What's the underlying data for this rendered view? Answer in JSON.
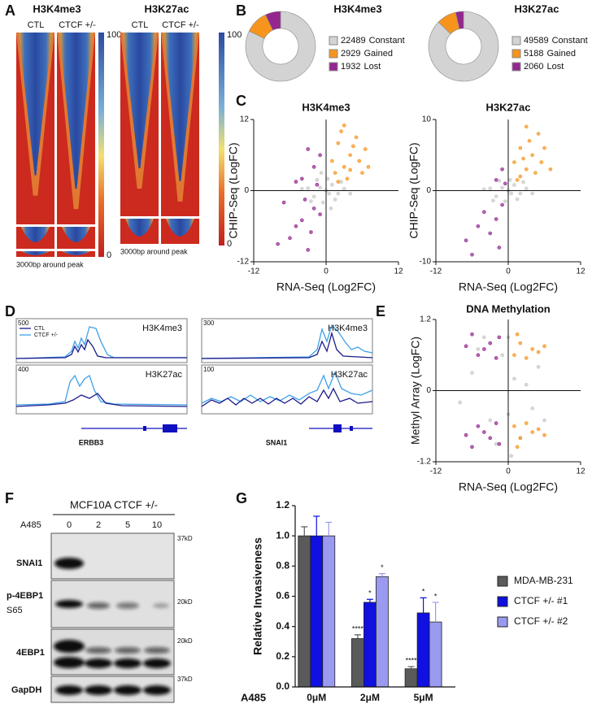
{
  "panel_labels": [
    "A",
    "B",
    "C",
    "D",
    "E",
    "F",
    "G"
  ],
  "heatmaps": [
    {
      "title": "H3K4me3",
      "columns": [
        "CTL",
        "CTCF +/-"
      ],
      "scale": [
        100,
        0
      ],
      "footer": "3000bp around peak"
    },
    {
      "title": "H3K27ac",
      "columns": [
        "CTL",
        "CTCF +/-"
      ],
      "scale": [
        100,
        0
      ],
      "footer": "3000bp around peak"
    }
  ],
  "chart_data": [
    {
      "type": "pie",
      "title": "H3K4me3",
      "categories": [
        "Constant",
        "Gained",
        "Lost"
      ],
      "values": [
        22489,
        2929,
        1932
      ],
      "colors": [
        "#d3d3d3",
        "#f7941d",
        "#93278f"
      ]
    },
    {
      "type": "pie",
      "title": "H3K27ac",
      "categories": [
        "Constant",
        "Gained",
        "Lost"
      ],
      "values": [
        49589,
        5188,
        2060
      ],
      "colors": [
        "#d3d3d3",
        "#f7941d",
        "#93278f"
      ]
    },
    {
      "type": "scatter",
      "title": "H3K4me3",
      "xlabel": "RNA-Seq (Log2FC)",
      "ylabel": "CHIP-Seq (LogFC)",
      "xlim": [
        -12,
        12
      ],
      "ylim": [
        -12,
        12
      ],
      "xticks": [
        -12,
        0,
        12
      ],
      "yticks": [
        -12,
        0,
        12
      ],
      "series": [
        {
          "color": "#c8c8c8",
          "x": [
            -1,
            0.5,
            1,
            -2,
            2,
            -0.5,
            0.3,
            3,
            -3,
            1.5,
            -1.5,
            0,
            2.5,
            -2.5,
            4,
            -4,
            0.8,
            -0.8
          ],
          "y": [
            0.5,
            -0.5,
            1,
            -1,
            -0.5,
            -2,
            2,
            0.3,
            0.4,
            -1.5,
            1.8,
            0,
            1.5,
            -1.8,
            -0.5,
            0.3,
            -3,
            3
          ]
        },
        {
          "color": "#f7941d",
          "x": [
            1,
            2,
            3,
            4,
            5,
            6,
            2.5,
            3.5,
            4.5,
            1.5,
            5.5,
            7,
            3,
            6.5,
            2,
            4
          ],
          "y": [
            5,
            8,
            4,
            6,
            9,
            3,
            10,
            2,
            7.5,
            3,
            5,
            4,
            11,
            7,
            1.5,
            3.5
          ]
        },
        {
          "color": "#93278f",
          "x": [
            -2,
            -4,
            -1,
            -3,
            -5,
            -2,
            -4,
            -6,
            -3,
            -1,
            -7,
            -5,
            -2.5,
            -8,
            -3.5,
            -1.5
          ],
          "y": [
            4,
            2,
            6,
            7,
            1.5,
            -3,
            -5,
            -8,
            -10,
            -4,
            -2,
            -6,
            -7,
            -9,
            -1.5,
            1
          ]
        }
      ]
    },
    {
      "type": "scatter",
      "title": "H3K27ac",
      "xlabel": "RNA-Seq (Log2FC)",
      "ylabel": "CHIP-Seq (LogFC)",
      "xlim": [
        -12,
        12
      ],
      "ylim": [
        -10,
        10
      ],
      "xticks": [
        -12,
        0,
        12
      ],
      "yticks": [
        -10,
        0,
        10
      ],
      "series": [
        {
          "color": "#c8c8c8",
          "x": [
            -1,
            0.5,
            1,
            -2,
            2,
            -0.5,
            0.3,
            3,
            -3,
            1.5,
            -1.5,
            0,
            2.5,
            -2.5,
            4,
            -4
          ],
          "y": [
            0.4,
            -0.4,
            0.8,
            -0.8,
            -0.4,
            -1.5,
            1.5,
            0.3,
            0.3,
            -1.2,
            1.4,
            0,
            1.2,
            -1.4,
            -0.4,
            0.2
          ]
        },
        {
          "color": "#f7941d",
          "x": [
            1,
            2,
            3,
            4,
            5,
            2,
            3,
            4.5,
            1.5,
            5.5,
            6,
            3.5,
            2.5,
            7
          ],
          "y": [
            4,
            6,
            3,
            5,
            8,
            2,
            9,
            2.5,
            1.5,
            4,
            6,
            7,
            4.5,
            3
          ]
        },
        {
          "color": "#93278f",
          "x": [
            -1,
            -2,
            -1,
            -3,
            -5,
            -6,
            -2,
            -4,
            -1.5,
            -7,
            -0.5
          ],
          "y": [
            3,
            1.5,
            -2,
            -6,
            -5,
            -9,
            -4,
            -3,
            -8,
            -7,
            1
          ]
        }
      ]
    },
    {
      "type": "scatter",
      "title": "DNA Methylation",
      "xlabel": "RNA-Seq (Log2FC)",
      "ylabel": "Methyl Array (LogFC)",
      "xlim": [
        -12,
        12
      ],
      "ylim": [
        -1.2,
        1.2
      ],
      "xticks": [
        -12,
        0,
        12
      ],
      "yticks": [
        -1.2,
        0,
        1.2
      ],
      "series": [
        {
          "color": "#c8c8c8",
          "x": [
            -6,
            -3,
            0,
            2,
            5,
            -8,
            0.5,
            -1,
            3,
            -4,
            6,
            1,
            -2,
            4,
            -5,
            0
          ],
          "y": [
            0.3,
            -0.5,
            0.9,
            -0.8,
            0.4,
            -0.2,
            -1.1,
            0.6,
            0.1,
            0.9,
            -0.5,
            0.2,
            -0.9,
            -0.3,
            0.7,
            -0.4
          ]
        },
        {
          "color": "#93278f",
          "x": [
            -7,
            -5,
            -3,
            -2,
            -6,
            -4,
            -1.5,
            -7,
            -5,
            -3,
            -2,
            -6,
            -4,
            -1.5
          ],
          "y": [
            0.75,
            0.6,
            0.8,
            0.55,
            0.95,
            0.7,
            0.9,
            -0.75,
            -0.6,
            -0.8,
            -0.55,
            -0.95,
            -0.7,
            -0.9
          ]
        },
        {
          "color": "#f7941d",
          "x": [
            1,
            2,
            3,
            4,
            5,
            6,
            1.5,
            1,
            2,
            3,
            4,
            5,
            6,
            1.5
          ],
          "y": [
            0.6,
            0.8,
            0.55,
            0.7,
            0.65,
            0.75,
            0.95,
            -0.6,
            -0.8,
            -0.55,
            -0.7,
            -0.65,
            -0.75,
            -0.95
          ]
        }
      ]
    },
    {
      "type": "bar",
      "ylabel": "Relative Invasiveness",
      "xlabel": "A485",
      "categories": [
        "0μM",
        "2μM",
        "5μM"
      ],
      "ylim": [
        0,
        1.2
      ],
      "yticks": [
        {
          "value": 0,
          "label": "0.0"
        },
        0.2,
        0.4,
        0.6,
        0.8,
        {
          "value": 1,
          "label": "1.0"
        },
        1.2
      ],
      "series": [
        {
          "name": "MDA-MB-231",
          "color": "#5a5a5a",
          "values": [
            1,
            0.32,
            0.12
          ],
          "errors": [
            0.06,
            0.025,
            0.015
          ],
          "significance": [
            null,
            "****",
            "****"
          ]
        },
        {
          "name": "CTCF +/- #1",
          "color": "#1010e0",
          "values": [
            1,
            0.56,
            0.49
          ],
          "errors": [
            0.13,
            0.02,
            0.1
          ],
          "significance": [
            null,
            "*",
            "*"
          ]
        },
        {
          "name": "CTCF +/- #2",
          "color": "#9a9af0",
          "values": [
            1,
            0.73,
            0.43
          ],
          "errors": [
            0.09,
            0.02,
            0.13
          ],
          "significance": [
            null,
            "*",
            "*"
          ]
        }
      ]
    }
  ],
  "tracks": {
    "legend": [
      "CTL",
      "CTCF +/-"
    ],
    "panels": [
      {
        "gene": "ERBB3",
        "rows": [
          {
            "scale": 500,
            "mark": "H3K4me3"
          },
          {
            "scale": 400,
            "mark": "H3K27ac"
          }
        ]
      },
      {
        "gene": "SNAI1",
        "rows": [
          {
            "scale": 300,
            "mark": "H3K4me3"
          },
          {
            "scale": 100,
            "mark": "H3K27ac"
          }
        ]
      }
    ]
  },
  "western": {
    "title": "MCF10A CTCF +/-",
    "treatment": "A485",
    "lanes": [
      "0",
      "2",
      "5",
      "10"
    ],
    "blots": [
      {
        "label": [
          "SNAI1"
        ],
        "marker": "37kD"
      },
      {
        "label": [
          "p-4EBP1",
          "S65"
        ],
        "marker": "20kD"
      },
      {
        "label": [
          "4EBP1"
        ],
        "marker": "20kD"
      },
      {
        "label": [
          "GapDH"
        ],
        "marker": "37kD"
      }
    ]
  }
}
